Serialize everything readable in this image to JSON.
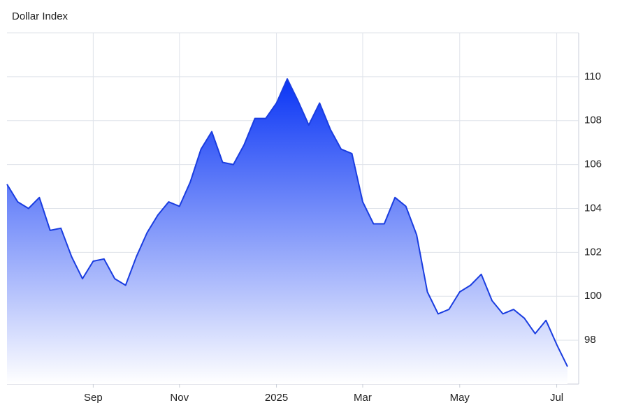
{
  "chart_data": {
    "type": "area",
    "title": "Dollar Index",
    "categories": [
      null,
      null,
      null,
      null,
      null,
      null,
      null,
      null,
      "Sep",
      null,
      null,
      null,
      null,
      null,
      null,
      null,
      "Nov",
      null,
      null,
      null,
      null,
      null,
      null,
      null,
      null,
      "2025",
      null,
      null,
      null,
      null,
      null,
      null,
      null,
      "Mar",
      null,
      null,
      null,
      null,
      null,
      null,
      null,
      null,
      "May",
      null,
      null,
      null,
      null,
      null,
      null,
      null,
      null,
      "Jul",
      null
    ],
    "series": [
      {
        "name": "Dollar Index",
        "color": "#1a3de0",
        "values": [
          105.1,
          104.3,
          104.0,
          104.5,
          103.0,
          103.1,
          101.8,
          100.8,
          101.6,
          101.7,
          100.8,
          100.5,
          101.8,
          102.9,
          103.7,
          104.3,
          104.1,
          105.2,
          106.7,
          107.5,
          106.1,
          106.0,
          106.9,
          108.1,
          108.1,
          108.8,
          109.9,
          108.9,
          107.8,
          108.8,
          107.6,
          106.7,
          106.5,
          104.3,
          103.3,
          103.3,
          104.5,
          104.1,
          102.8,
          100.2,
          99.2,
          99.4,
          100.2,
          100.5,
          101.0,
          99.8,
          99.2,
          99.4,
          99.0,
          98.3,
          98.9,
          97.8,
          96.8
        ]
      }
    ],
    "ylim": [
      96,
      112
    ],
    "yticks": [
      98,
      100,
      102,
      104,
      106,
      108,
      110
    ],
    "grid": true
  }
}
